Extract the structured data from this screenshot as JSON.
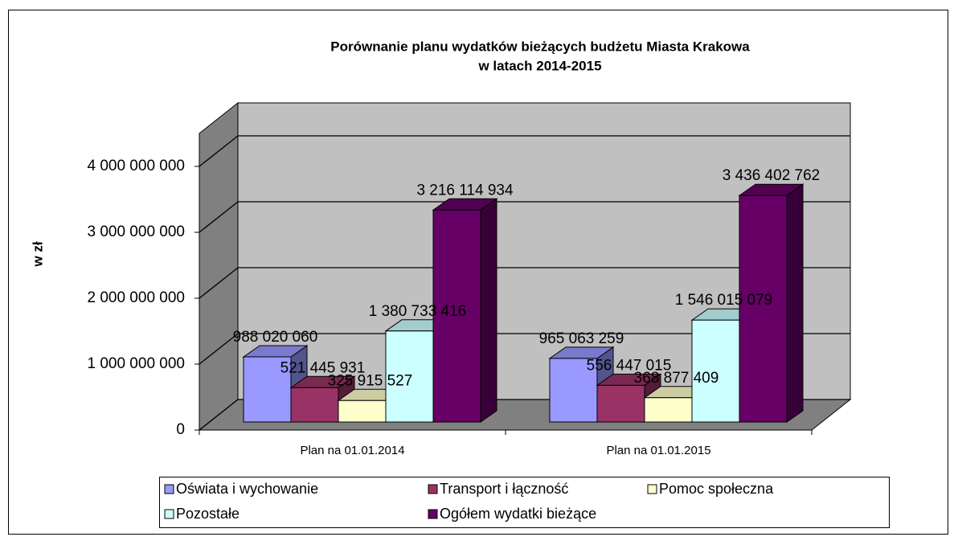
{
  "chart_data": {
    "type": "bar3d",
    "title": [
      "Porównanie planu wydatków bieżących budżetu Miasta Krakowa",
      "w latach 2014-2015"
    ],
    "y_label": "w zł",
    "categories": [
      "Plan na 01.01.2014",
      "Plan na 01.01.2015"
    ],
    "series": [
      {
        "name": "Oświata i wychowanie",
        "color": "#9999ff",
        "values": [
          988020060,
          965063259
        ],
        "value_labels": [
          "988 020 060",
          "965 063 259"
        ]
      },
      {
        "name": "Transport i łączność",
        "color": "#993366",
        "values": [
          521445931,
          556447015
        ],
        "value_labels": [
          "521 445 931",
          "556 447 015"
        ]
      },
      {
        "name": "Pomoc społeczna",
        "color": "#ffffcc",
        "values": [
          325915527,
          368877409
        ],
        "value_labels": [
          "325 915 527",
          "368 877 409"
        ]
      },
      {
        "name": "Pozostałe",
        "color": "#ccffff",
        "values": [
          1380733416,
          1546015079
        ],
        "value_labels": [
          "1 380 733 416",
          "1 546 015 079"
        ]
      },
      {
        "name": "Ogółem wydatki bieżące",
        "color": "#660066",
        "values": [
          3216114934,
          3436402762
        ],
        "value_labels": [
          "3 216 114 934",
          "3 436 402 762"
        ]
      }
    ],
    "ylim": [
      0,
      4500000000
    ],
    "yticks": [
      0,
      {
        "value": 1000000000,
        "label": "1 000 000 000"
      },
      {
        "value": 2000000000,
        "label": "2 000 000 000"
      },
      {
        "value": 3000000000,
        "label": "3 000 000 000"
      },
      {
        "value": 4000000000,
        "label": "4 000 000 000"
      }
    ],
    "grid": true,
    "legend": "bottom"
  }
}
